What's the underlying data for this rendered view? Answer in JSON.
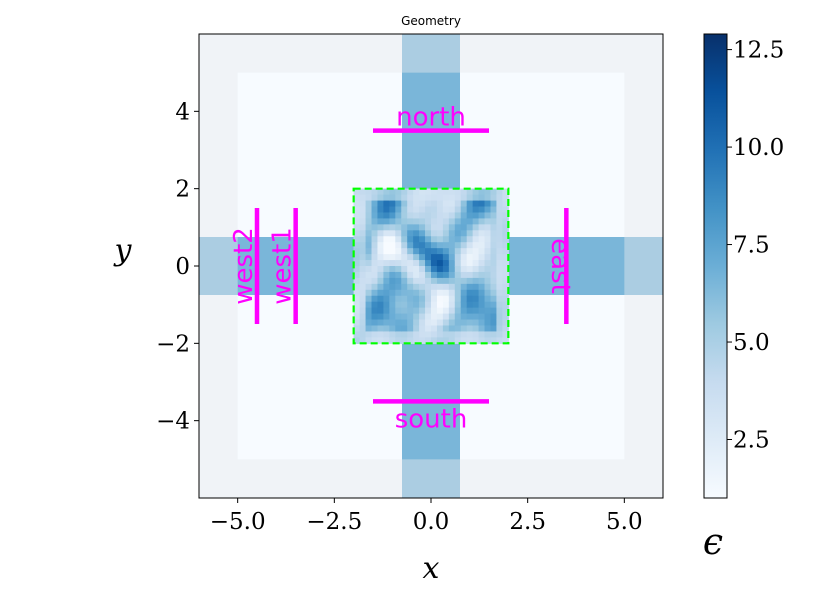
{
  "chart_data": {
    "type": "heatmap",
    "title": "Geometry",
    "xlabel": "x",
    "ylabel": "y",
    "xlim": [
      -6,
      6
    ],
    "ylim": [
      -6,
      6
    ],
    "x_ticks": [
      -5.0,
      -2.5,
      0.0,
      2.5,
      5.0
    ],
    "x_tick_labels": [
      "−5.0",
      "−2.5",
      "0.0",
      "2.5",
      "5.0"
    ],
    "y_ticks": [
      -4,
      -2,
      0,
      2,
      4
    ],
    "y_tick_labels": [
      "−4",
      "−2",
      "0",
      "2",
      "4"
    ],
    "colorbar": {
      "label": "ϵ",
      "range": [
        1,
        12.9
      ],
      "ticks": [
        2.5,
        5.0,
        7.5,
        10.0,
        12.5
      ],
      "tick_labels": [
        "2.5",
        "5.0",
        "7.5",
        "10.0",
        "12.5"
      ],
      "colormap": "Blues",
      "colors": [
        "#f7fbff",
        "#deebf7",
        "#c6dbef",
        "#9ecae1",
        "#6baed6",
        "#4292c6",
        "#2171b5",
        "#08519c",
        "#08306b"
      ]
    },
    "permittivity_regions": [
      {
        "name": "background",
        "x": [
          -6,
          6
        ],
        "y": [
          -6,
          6
        ],
        "eps": 1
      },
      {
        "name": "horizontal-waveguide",
        "x": [
          -6,
          6
        ],
        "y": [
          -0.75,
          0.75
        ],
        "eps": 6.5
      },
      {
        "name": "vertical-waveguide",
        "x": [
          -0.75,
          0.75
        ],
        "y": [
          -6,
          6
        ],
        "eps": 6.5
      },
      {
        "name": "design-region",
        "x": [
          -2,
          2
        ],
        "y": [
          -2,
          2
        ],
        "eps_range": [
          1,
          12.9
        ]
      }
    ],
    "pml": {
      "thickness": 1.0,
      "color": "#e6e9ed"
    },
    "design_region_box": {
      "x": [
        -2,
        2
      ],
      "y": [
        -2,
        2
      ],
      "color": "#00ff00"
    },
    "monitors": [
      {
        "label": "north",
        "x": [
          -1.5,
          1.5
        ],
        "y": [
          3.5,
          3.5
        ],
        "color": "#ff00ff"
      },
      {
        "label": "south",
        "x": [
          -1.5,
          1.5
        ],
        "y": [
          -3.5,
          -3.5
        ],
        "color": "#ff00ff"
      },
      {
        "label": "east",
        "x": [
          3.5,
          3.5
        ],
        "y": [
          -1.5,
          1.5
        ],
        "color": "#ff00ff"
      },
      {
        "label": "west1",
        "x": [
          -3.5,
          -3.5
        ],
        "y": [
          -1.5,
          1.5
        ],
        "color": "#ff00ff"
      },
      {
        "label": "west2",
        "x": [
          -4.5,
          -4.5
        ],
        "y": [
          -1.5,
          1.5
        ],
        "color": "#ff00ff"
      }
    ]
  }
}
